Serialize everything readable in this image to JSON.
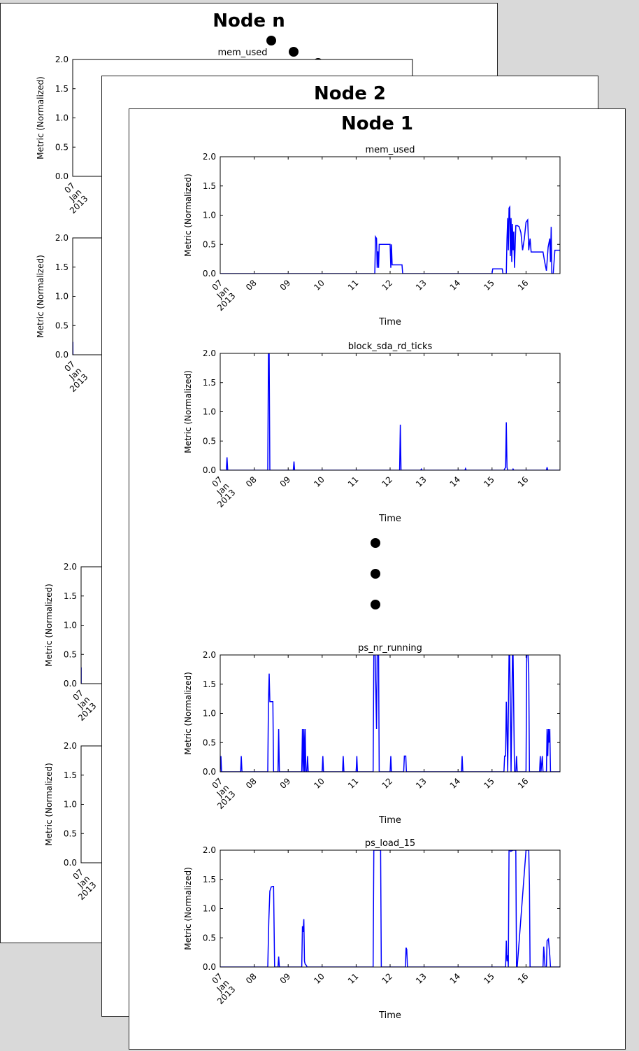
{
  "sheets": {
    "node_n": {
      "title": "Node n"
    },
    "node_2": {
      "title": "Node 2"
    },
    "node_1": {
      "title": "Node 1"
    }
  },
  "colors": {
    "series": "#0000ff",
    "frame": "#000000"
  },
  "chart_data": [
    {
      "id": "n_mem",
      "type": "line",
      "title": "mem_used",
      "xlabel": "",
      "ylabel": "Metric (Normalized)",
      "xticks": [
        "07\nJan\n2013"
      ],
      "yticks": [
        "0.0",
        "0.5",
        "1.0",
        "1.5",
        "2.0"
      ],
      "ylim": [
        0,
        2
      ],
      "series": [
        {
          "x": [],
          "y": []
        }
      ]
    },
    {
      "id": "n_second",
      "type": "line",
      "title": "",
      "xlabel": "",
      "ylabel": "Metric (Normalized)",
      "xticks": [
        "07\nJan\n2013"
      ],
      "yticks": [
        "0.0",
        "0.5",
        "1.0",
        "1.5",
        "2.0"
      ],
      "ylim": [
        0,
        2
      ],
      "series": [
        {
          "x": [
            7.0,
            7.04,
            7.05,
            7.06,
            7.1
          ],
          "y": [
            0,
            0,
            0.22,
            0,
            0
          ]
        }
      ]
    },
    {
      "id": "n_third",
      "type": "line",
      "title": "",
      "xlabel": "",
      "ylabel": "Metric (Normalized)",
      "xticks": [
        "07\nJan\n2013"
      ],
      "yticks": [
        "0.0",
        "0.5",
        "1.0",
        "1.5",
        "2.0"
      ],
      "ylim": [
        0,
        2
      ],
      "series": [
        {
          "x": [
            7.0,
            7.01,
            7.02,
            7.03,
            7.06
          ],
          "y": [
            0,
            0.27,
            0.27,
            0,
            0
          ]
        }
      ]
    },
    {
      "id": "n_fourth",
      "type": "line",
      "title": "",
      "xlabel": "",
      "ylabel": "Metric (Normalized)",
      "xticks": [
        "07\nJan\n2013"
      ],
      "yticks": [
        "0.0",
        "0.5",
        "1.0",
        "1.5",
        "2.0"
      ],
      "ylim": [
        0,
        2
      ],
      "series": [
        {
          "x": [],
          "y": []
        }
      ]
    },
    {
      "id": "mem_used",
      "type": "line",
      "title": "mem_used",
      "xlabel": "Time",
      "ylabel": "Metric (Normalized)",
      "xticks": [
        "07\nJan\n2013",
        "08",
        "09",
        "10",
        "11",
        "12",
        "13",
        "14",
        "15",
        "16"
      ],
      "yticks": [
        "0.0",
        "0.5",
        "1.0",
        "1.5",
        "2.0"
      ],
      "xlim": [
        7,
        17
      ],
      "ylim": [
        0,
        2
      ],
      "series": [
        {
          "x": [
            7.0,
            11.55,
            11.57,
            11.6,
            11.62,
            11.64,
            11.66,
            11.68,
            11.72,
            12.0,
            12.02,
            12.04,
            12.06,
            12.35,
            12.37,
            15.0,
            15.02,
            15.3,
            15.32,
            15.42,
            15.44,
            15.46,
            15.48,
            15.5,
            15.52,
            15.54,
            15.56,
            15.58,
            15.6,
            15.62,
            15.64,
            15.66,
            15.7,
            15.75,
            15.8,
            15.85,
            15.9,
            15.95,
            16.0,
            16.05,
            16.08,
            16.12,
            16.15,
            16.2,
            16.5,
            16.55,
            16.6,
            16.65,
            16.7,
            16.72,
            16.74,
            16.76,
            16.8,
            16.85,
            17.0
          ],
          "y": [
            0,
            0,
            0.63,
            0.6,
            0.1,
            0.38,
            0.1,
            0.5,
            0.5,
            0.5,
            0.1,
            0.5,
            0.15,
            0.15,
            0,
            0,
            0.08,
            0.08,
            0,
            0,
            0.6,
            0.95,
            0.4,
            1.12,
            1.14,
            0.3,
            0.95,
            0.2,
            0.85,
            0.4,
            0.72,
            0.1,
            0.82,
            0.82,
            0.8,
            0.7,
            0.4,
            0.6,
            0.88,
            0.92,
            0.4,
            0.6,
            0.37,
            0.37,
            0.37,
            0.2,
            0.05,
            0.45,
            0.6,
            0.2,
            0.8,
            0,
            0,
            0.4,
            0.4
          ]
        }
      ]
    },
    {
      "id": "block_sda_rd_ticks",
      "type": "line",
      "title": "block_sda_rd_ticks",
      "xlabel": "Time",
      "ylabel": "Metric (Normalized)",
      "xticks": [
        "07\nJan\n2013",
        "08",
        "09",
        "10",
        "11",
        "12",
        "13",
        "14",
        "15",
        "16"
      ],
      "yticks": [
        "0.0",
        "0.5",
        "1.0",
        "1.5",
        "2.0"
      ],
      "xlim": [
        7,
        17
      ],
      "ylim": [
        0,
        2
      ],
      "series": [
        {
          "x": [
            7.0,
            7.18,
            7.2,
            7.22,
            8.4,
            8.42,
            8.44,
            8.46,
            9.15,
            9.17,
            9.19,
            12.28,
            12.3,
            12.32,
            12.9,
            12.92,
            12.94,
            14.2,
            14.22,
            14.24,
            15.35,
            15.4,
            15.42,
            15.44,
            15.46,
            15.6,
            15.62,
            15.64,
            16.6,
            16.62,
            16.64,
            17.0
          ],
          "y": [
            0,
            0,
            0.22,
            0,
            0,
            2.0,
            2.0,
            0,
            0,
            0.15,
            0,
            0,
            0.78,
            0,
            0,
            0.02,
            0,
            0,
            0.03,
            0,
            0,
            0.05,
            0.82,
            0.05,
            0,
            0,
            0.02,
            0,
            0,
            0.05,
            0,
            0
          ]
        }
      ]
    },
    {
      "id": "ps_nr_running",
      "type": "line",
      "title": "ps_nr_running",
      "xlabel": "Time",
      "ylabel": "Metric (Normalized)",
      "xticks": [
        "07\nJan\n2013",
        "08",
        "09",
        "10",
        "11",
        "12",
        "13",
        "14",
        "15",
        "16"
      ],
      "yticks": [
        "0.0",
        "0.5",
        "1.0",
        "1.5",
        "2.0"
      ],
      "xlim": [
        7,
        17
      ],
      "ylim": [
        0,
        2
      ],
      "series": [
        {
          "x": [
            7.0,
            7.02,
            7.04,
            7.6,
            7.62,
            7.64,
            8.4,
            8.42,
            8.44,
            8.46,
            8.48,
            8.55,
            8.57,
            8.7,
            8.72,
            8.74,
            9.4,
            9.42,
            9.44,
            9.46,
            9.48,
            9.5,
            9.52,
            9.55,
            9.57,
            9.59,
            10.0,
            10.02,
            10.04,
            10.6,
            10.62,
            10.64,
            11.0,
            11.02,
            11.04,
            11.5,
            11.52,
            11.56,
            11.6,
            11.62,
            11.66,
            11.68,
            12.0,
            12.02,
            12.04,
            12.4,
            12.42,
            12.46,
            12.48,
            14.1,
            14.12,
            14.14,
            15.35,
            15.37,
            15.4,
            15.42,
            15.44,
            15.46,
            15.5,
            15.52,
            15.56,
            15.6,
            15.62,
            15.66,
            15.7,
            15.72,
            15.74,
            16.0,
            16.02,
            16.06,
            16.08,
            16.1,
            16.4,
            16.42,
            16.44,
            16.48,
            16.5,
            16.6,
            16.62,
            16.64,
            16.66,
            16.68,
            16.7,
            16.72,
            17.0
          ],
          "y": [
            0,
            0.27,
            0,
            0,
            0.27,
            0,
            0,
            1.2,
            1.68,
            1.2,
            1.2,
            1.2,
            0,
            0,
            0.73,
            0,
            0,
            0.73,
            0,
            0.73,
            0,
            0.73,
            0,
            0,
            0.27,
            0,
            0,
            0.27,
            0,
            0,
            0.27,
            0,
            0,
            0.27,
            0,
            0,
            2.0,
            2.0,
            0.73,
            2.0,
            2.0,
            0,
            0,
            0.27,
            0,
            0,
            0.27,
            0.27,
            0,
            0,
            0.27,
            0,
            0,
            0.27,
            0.27,
            1.2,
            0.73,
            0,
            2.0,
            2.0,
            0,
            2.0,
            2.0,
            0,
            0,
            0.27,
            0,
            0,
            2.0,
            2.0,
            1.7,
            0,
            0,
            0.27,
            0,
            0.27,
            0,
            0,
            0.73,
            0.27,
            0.73,
            0.5,
            0.73,
            0,
            0
          ]
        }
      ]
    },
    {
      "id": "ps_load_15",
      "type": "line",
      "title": "ps_load_15",
      "xlabel": "Time",
      "ylabel": "Metric (Normalized)",
      "xticks": [
        "07\nJan\n2013",
        "08",
        "09",
        "10",
        "11",
        "12",
        "13",
        "14",
        "15",
        "16"
      ],
      "yticks": [
        "0.0",
        "0.5",
        "1.0",
        "1.5",
        "2.0"
      ],
      "xlim": [
        7,
        17
      ],
      "ylim": [
        0,
        2
      ],
      "series": [
        {
          "x": [
            7.0,
            8.4,
            8.43,
            8.46,
            8.5,
            8.54,
            8.57,
            8.6,
            8.7,
            8.72,
            8.74,
            9.4,
            9.42,
            9.44,
            9.46,
            9.48,
            9.5,
            9.52,
            9.56,
            11.5,
            11.52,
            11.54,
            11.56,
            11.7,
            11.72,
            11.74,
            12.45,
            12.47,
            12.49,
            12.51,
            15.4,
            15.42,
            15.44,
            15.46,
            15.48,
            15.5,
            15.52,
            15.55,
            15.62,
            15.7,
            15.72,
            15.74,
            16.0,
            16.02,
            16.08,
            16.1,
            16.12,
            16.5,
            16.52,
            16.54,
            16.56,
            16.6,
            16.62,
            16.66,
            16.7,
            16.72,
            17.0
          ],
          "y": [
            0,
            0,
            0.8,
            1.3,
            1.37,
            1.38,
            1.38,
            0,
            0,
            0.18,
            0,
            0,
            0.7,
            0.6,
            0.82,
            0.1,
            0.05,
            0.04,
            0,
            0,
            2.0,
            2.0,
            2.0,
            2.0,
            2.0,
            0,
            0,
            0.33,
            0.3,
            0,
            0,
            0.45,
            0.1,
            0.2,
            0,
            2.0,
            2.0,
            1.98,
            2.0,
            2.0,
            0,
            0,
            2.0,
            2.0,
            2.0,
            1.4,
            0,
            0,
            0.35,
            0.2,
            0,
            0,
            0.45,
            0.48,
            0.2,
            0,
            0
          ]
        }
      ]
    }
  ]
}
